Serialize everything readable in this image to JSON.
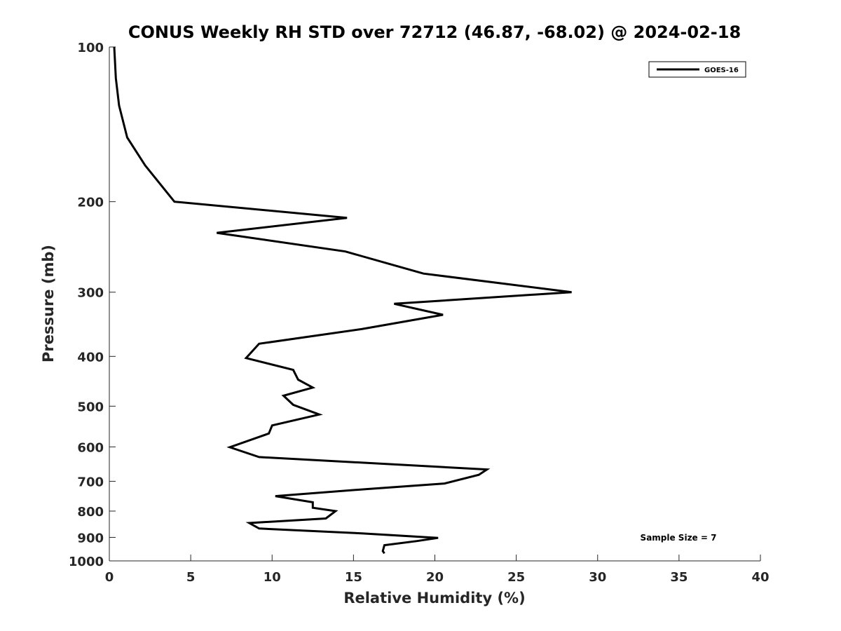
{
  "chart_data": {
    "type": "line",
    "title": "CONUS Weekly RH STD over 72712 (46.87, -68.02) @ 2024-02-18",
    "xlabel": "Relative Humidity (%)",
    "ylabel": "Pressure (mb)",
    "xlim": [
      0,
      40
    ],
    "ylim": [
      100,
      1000
    ],
    "y_scale": "log",
    "y_reversed": true,
    "x_ticks": [
      0,
      5,
      10,
      15,
      20,
      25,
      30,
      35,
      40
    ],
    "y_ticks": [
      100,
      200,
      300,
      400,
      500,
      600,
      700,
      800,
      900,
      1000
    ],
    "grid": false,
    "legend_position": "top-right",
    "annotation": "Sample Size = 7",
    "series": [
      {
        "name": "GOES-16",
        "color": "#000000",
        "points": [
          [
            0.3,
            100
          ],
          [
            0.4,
            115
          ],
          [
            0.6,
            130
          ],
          [
            1.1,
            150
          ],
          [
            2.2,
            170
          ],
          [
            4.0,
            200
          ],
          [
            14.6,
            215
          ],
          [
            6.6,
            230
          ],
          [
            14.5,
            250
          ],
          [
            19.3,
            276
          ],
          [
            28.4,
            300
          ],
          [
            17.5,
            316
          ],
          [
            20.5,
            332
          ],
          [
            15.5,
            354
          ],
          [
            9.2,
            378
          ],
          [
            8.4,
            403
          ],
          [
            11.3,
            425
          ],
          [
            11.6,
            444
          ],
          [
            12.5,
            460
          ],
          [
            10.7,
            477
          ],
          [
            11.3,
            497
          ],
          [
            12.9,
            519
          ],
          [
            10.0,
            545
          ],
          [
            9.8,
            565
          ],
          [
            7.4,
            601
          ],
          [
            9.2,
            628
          ],
          [
            23.2,
            664
          ],
          [
            22.7,
            680
          ],
          [
            20.6,
            707
          ],
          [
            15.8,
            725
          ],
          [
            10.2,
            748
          ],
          [
            12.5,
            769
          ],
          [
            12.5,
            788
          ],
          [
            13.9,
            800
          ],
          [
            13.3,
            827
          ],
          [
            8.6,
            844
          ],
          [
            9.2,
            865
          ],
          [
            15.5,
            884
          ],
          [
            20.2,
            902
          ],
          [
            18.9,
            915
          ],
          [
            16.9,
            932
          ],
          [
            16.8,
            957
          ],
          [
            16.9,
            967
          ]
        ]
      }
    ]
  }
}
